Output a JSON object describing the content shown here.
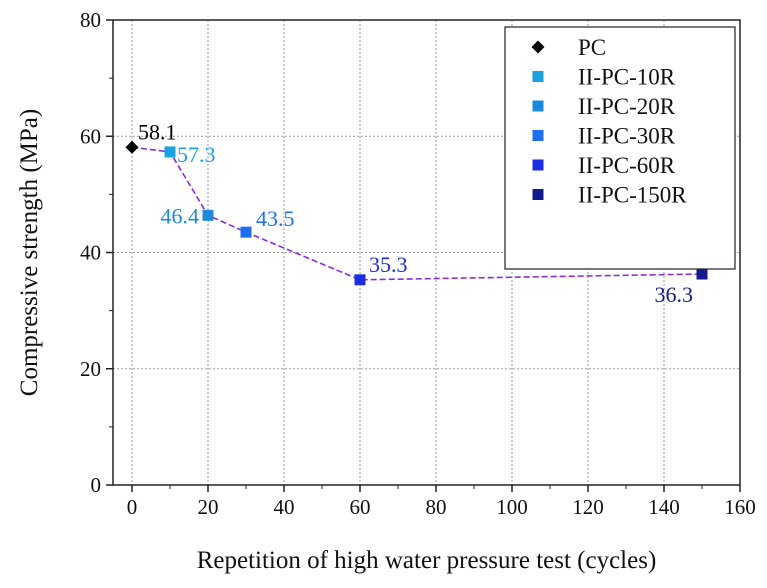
{
  "chart_data": {
    "type": "line",
    "title": "",
    "xlabel": "Repetition of high water pressure test (cycles)",
    "ylabel": "Compressive strength (MPa)",
    "xlim": [
      -5,
      160
    ],
    "ylim": [
      0,
      80
    ],
    "xticks": [
      0,
      20,
      40,
      60,
      80,
      100,
      120,
      140,
      160
    ],
    "yticks": [
      0,
      20,
      40,
      60,
      80
    ],
    "grid": true,
    "legend_position": "top-right",
    "line_color": "#8a2be2",
    "series": [
      {
        "name": "PC",
        "x": 0,
        "y": 58.1,
        "label": "58.1",
        "marker": "diamond",
        "color": "#000000"
      },
      {
        "name": "II-PC-10R",
        "x": 10,
        "y": 57.3,
        "label": "57.3",
        "marker": "square",
        "color": "#1ba1e2"
      },
      {
        "name": "II-PC-20R",
        "x": 20,
        "y": 46.4,
        "label": "46.4",
        "marker": "square",
        "color": "#1b8ad9"
      },
      {
        "name": "II-PC-30R",
        "x": 30,
        "y": 43.5,
        "label": "43.5",
        "marker": "square",
        "color": "#1e6ff0"
      },
      {
        "name": "II-PC-60R",
        "x": 60,
        "y": 35.3,
        "label": "35.3",
        "marker": "square",
        "color": "#1a2ee0"
      },
      {
        "name": "II-PC-150R",
        "x": 150,
        "y": 36.3,
        "label": "36.3",
        "marker": "square",
        "color": "#141a8c"
      }
    ]
  }
}
